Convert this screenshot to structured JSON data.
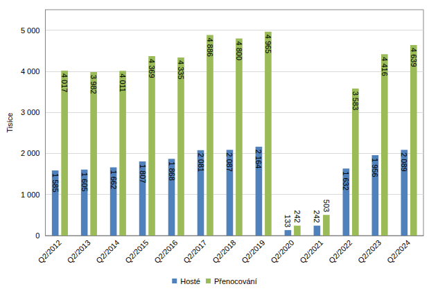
{
  "chart_data": {
    "type": "bar",
    "y_label": "Tisíce",
    "categories": [
      "Q2/2012",
      "Q2/2013",
      "Q2/2014",
      "Q2/2015",
      "Q2/2016",
      "Q2/2017",
      "Q2/2018",
      "Q2/2019",
      "Q2/2020",
      "Q2/2021",
      "Q2/2022",
      "Q2/2023",
      "Q2/2024"
    ],
    "series": [
      {
        "name": "Hosté",
        "color": "#4f81bd",
        "values": [
          1585,
          1605,
          1662,
          1807,
          1868,
          2081,
          2087,
          2164,
          133,
          242,
          1632,
          1956,
          2089
        ],
        "value_labels": [
          "1 585",
          "1 605",
          "1 662",
          "1 807",
          "1 868",
          "2 081",
          "2 087",
          "2 164",
          "133",
          "242",
          "1 632",
          "1 956",
          "2 089"
        ]
      },
      {
        "name": "Přenocování",
        "color": "#9bbb59",
        "values": [
          4017,
          3982,
          4011,
          4369,
          4335,
          4886,
          4800,
          4965,
          242,
          503,
          3583,
          4416,
          4639
        ],
        "value_labels": [
          "4 017",
          "3 982",
          "4 011",
          "4 369",
          "4 335",
          "4 886",
          "4 800",
          "4 965",
          "242",
          "503",
          "3 583",
          "4 416",
          "4 639"
        ]
      }
    ],
    "ylim": [
      0,
      5500
    ],
    "yticks": [
      0,
      {
        "value": 1000,
        "label": "1 000"
      },
      {
        "value": 2000,
        "label": "2 000"
      },
      {
        "value": 3000,
        "label": "3 000"
      },
      {
        "value": 4000,
        "label": "4 000"
      },
      {
        "value": 5000,
        "label": "5 000"
      }
    ],
    "grid": true,
    "legend": "bottom",
    "data_labels": true
  }
}
